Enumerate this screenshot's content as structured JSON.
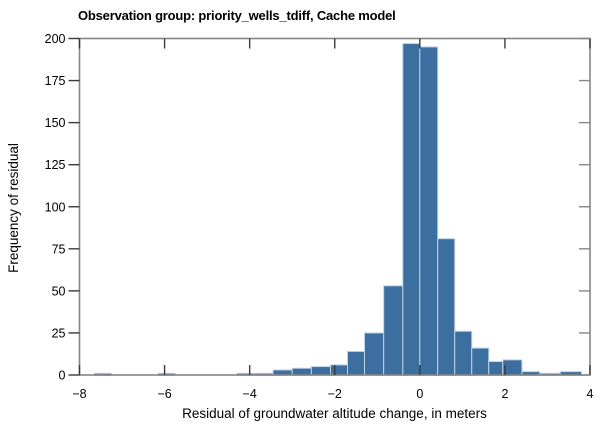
{
  "chart_data": {
    "type": "bar",
    "subtype": "histogram",
    "title": "Observation group: priority_wells_tdiff, Cache model",
    "xlabel": "Residual of groundwater altitude change, in meters",
    "ylabel": "Frequency of residual",
    "xlim": [
      -8,
      4
    ],
    "ylim": [
      0,
      200
    ],
    "grid": false,
    "legend_position": "none",
    "bar_color": "#3C6F9F",
    "bar_edge_color": "#BCD2E5",
    "spine_color": "#868686",
    "tick_color": "#3a3a3a",
    "x_ticks": [
      {
        "v": -8,
        "label": "−8"
      },
      {
        "v": -6,
        "label": "−6"
      },
      {
        "v": -4,
        "label": "−4"
      },
      {
        "v": -2,
        "label": "−2"
      },
      {
        "v": 0,
        "label": "0"
      },
      {
        "v": 2,
        "label": "2"
      },
      {
        "v": 4,
        "label": "4"
      }
    ],
    "y_ticks": [
      {
        "v": 0,
        "label": "0"
      },
      {
        "v": 25,
        "label": "25"
      },
      {
        "v": 50,
        "label": "50"
      },
      {
        "v": 75,
        "label": "75"
      },
      {
        "v": 100,
        "label": "100"
      },
      {
        "v": 125,
        "label": "125"
      },
      {
        "v": 150,
        "label": "150"
      },
      {
        "v": 175,
        "label": "175"
      },
      {
        "v": 200,
        "label": "200"
      }
    ],
    "bars": [
      {
        "x0": -7.65,
        "x1": -7.25,
        "freq": 1
      },
      {
        "x0": -6.15,
        "x1": -5.75,
        "freq": 1
      },
      {
        "x0": -4.3,
        "x1": -3.9,
        "freq": 1
      },
      {
        "x0": -3.9,
        "x1": -3.45,
        "freq": 1
      },
      {
        "x0": -3.45,
        "x1": -3.0,
        "freq": 3
      },
      {
        "x0": -3.0,
        "x1": -2.55,
        "freq": 4
      },
      {
        "x0": -2.55,
        "x1": -2.1,
        "freq": 5
      },
      {
        "x0": -2.1,
        "x1": -1.7,
        "freq": 6
      },
      {
        "x0": -1.7,
        "x1": -1.3,
        "freq": 14
      },
      {
        "x0": -1.3,
        "x1": -0.85,
        "freq": 25
      },
      {
        "x0": -0.85,
        "x1": -0.4,
        "freq": 53
      },
      {
        "x0": -0.4,
        "x1": 0.0,
        "freq": 197
      },
      {
        "x0": 0.0,
        "x1": 0.42,
        "freq": 195
      },
      {
        "x0": 0.42,
        "x1": 0.82,
        "freq": 81
      },
      {
        "x0": 0.82,
        "x1": 1.22,
        "freq": 26
      },
      {
        "x0": 1.22,
        "x1": 1.62,
        "freq": 16
      },
      {
        "x0": 1.62,
        "x1": 1.95,
        "freq": 8
      },
      {
        "x0": 1.95,
        "x1": 2.4,
        "freq": 9
      },
      {
        "x0": 2.4,
        "x1": 2.82,
        "freq": 2
      },
      {
        "x0": 2.82,
        "x1": 3.3,
        "freq": 1
      },
      {
        "x0": 3.3,
        "x1": 3.8,
        "freq": 2
      }
    ]
  }
}
